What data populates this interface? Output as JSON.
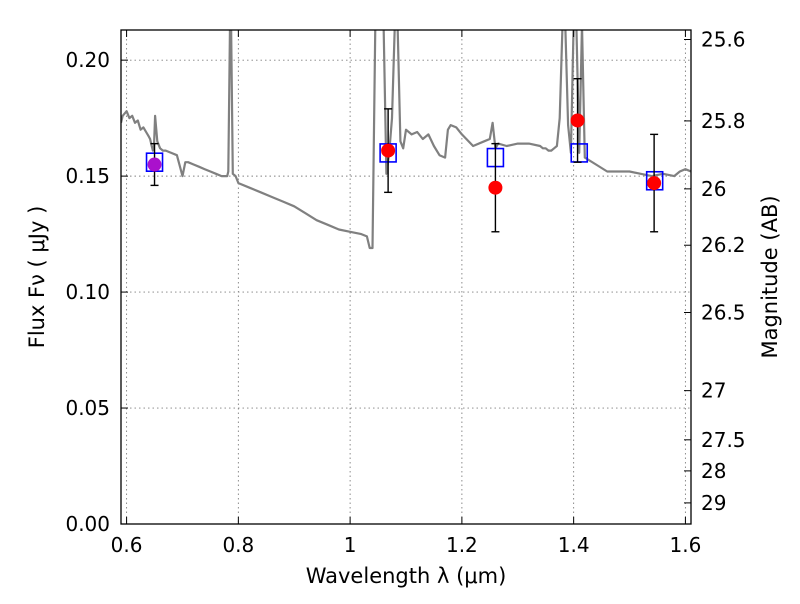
{
  "chart_data": {
    "type": "scatter",
    "xlabel": "Wavelength  λ (μm)",
    "ylabel": "Flux  Fν  ( μJy )",
    "y2label": "Magnitude (AB)",
    "xlim": [
      0.59,
      1.61
    ],
    "ylim": [
      0.0,
      0.213
    ],
    "grid": true,
    "x_ticks": [
      0.6,
      0.8,
      1.0,
      1.2,
      1.4,
      1.6
    ],
    "x_tick_labels": [
      "0.6",
      "0.8",
      "1",
      "1.2",
      "1.4",
      "1.6"
    ],
    "y_ticks": [
      0.0,
      0.05,
      0.1,
      0.15,
      0.2
    ],
    "y_tick_labels": [
      "0.00",
      "0.05",
      "0.10",
      "0.15",
      "0.20"
    ],
    "y2_ticks": [
      {
        "label": "25.6",
        "flux": 0.2089
      },
      {
        "label": "25.8",
        "flux": 0.1738
      },
      {
        "label": "26",
        "flux": 0.1445
      },
      {
        "label": "26.2",
        "flux": 0.1202
      },
      {
        "label": "26.5",
        "flux": 0.0912
      },
      {
        "label": "27",
        "flux": 0.0575
      },
      {
        "label": "27.5",
        "flux": 0.0363
      },
      {
        "label": "28",
        "flux": 0.0229
      },
      {
        "label": "29",
        "flux": 0.0091
      }
    ],
    "colors": {
      "model": "#808080",
      "observed": "#ff0000",
      "observed_blend": "#aa11cc",
      "model_band": "#0000ff",
      "errorbar": "#000000",
      "grid": "#808080"
    },
    "series": [
      {
        "kind": "model_spectrum",
        "x": [
          0.59,
          0.593,
          0.6,
          0.605,
          0.61,
          0.615,
          0.62,
          0.625,
          0.63,
          0.635,
          0.64,
          0.642,
          0.645,
          0.647,
          0.649,
          0.651,
          0.655,
          0.66,
          0.665,
          0.67,
          0.68,
          0.69,
          0.7,
          0.705,
          0.71,
          0.72,
          0.73,
          0.74,
          0.75,
          0.76,
          0.77,
          0.78,
          0.782,
          0.785,
          0.787,
          0.79,
          0.795,
          0.8,
          0.82,
          0.84,
          0.86,
          0.88,
          0.9,
          0.92,
          0.94,
          0.96,
          0.98,
          1.0,
          1.02,
          1.03,
          1.035,
          1.04,
          1.045,
          1.05,
          1.055,
          1.06,
          1.065,
          1.07,
          1.075,
          1.08,
          1.083,
          1.085,
          1.09,
          1.095,
          1.1,
          1.11,
          1.12,
          1.13,
          1.14,
          1.15,
          1.16,
          1.17,
          1.175,
          1.18,
          1.19,
          1.2,
          1.22,
          1.24,
          1.25,
          1.255,
          1.26,
          1.265,
          1.28,
          1.3,
          1.32,
          1.34,
          1.345,
          1.35,
          1.355,
          1.36,
          1.365,
          1.37,
          1.375,
          1.38,
          1.385,
          1.39,
          1.395,
          1.4,
          1.405,
          1.41,
          1.415,
          1.42,
          1.44,
          1.46,
          1.48,
          1.5,
          1.52,
          1.54,
          1.56,
          1.58,
          1.59,
          1.6,
          1.61
        ],
        "y": [
          0.173,
          0.176,
          0.178,
          0.175,
          0.176,
          0.173,
          0.174,
          0.17,
          0.171,
          0.169,
          0.167,
          0.166,
          0.163,
          0.161,
          0.163,
          0.176,
          0.165,
          0.162,
          0.161,
          0.161,
          0.16,
          0.159,
          0.15,
          0.156,
          0.156,
          0.155,
          0.154,
          0.153,
          0.152,
          0.151,
          0.15,
          0.15,
          0.152,
          0.215,
          0.215,
          0.151,
          0.15,
          0.147,
          0.145,
          0.143,
          0.141,
          0.139,
          0.137,
          0.134,
          0.131,
          0.129,
          0.127,
          0.126,
          0.125,
          0.124,
          0.119,
          0.119,
          0.215,
          0.215,
          0.215,
          0.215,
          0.151,
          0.16,
          0.175,
          0.215,
          0.215,
          0.215,
          0.165,
          0.162,
          0.17,
          0.168,
          0.169,
          0.166,
          0.168,
          0.163,
          0.159,
          0.158,
          0.17,
          0.172,
          0.171,
          0.168,
          0.163,
          0.165,
          0.166,
          0.173,
          0.162,
          0.164,
          0.163,
          0.164,
          0.164,
          0.163,
          0.162,
          0.162,
          0.161,
          0.161,
          0.162,
          0.163,
          0.175,
          0.215,
          0.215,
          0.172,
          0.16,
          0.215,
          0.215,
          0.16,
          0.215,
          0.158,
          0.155,
          0.152,
          0.152,
          0.152,
          0.151,
          0.15,
          0.151,
          0.15,
          0.152,
          0.153,
          0.152
        ]
      },
      {
        "kind": "model_band",
        "x": [
          0.65,
          1.068,
          1.26,
          1.41,
          1.545
        ],
        "y": [
          0.156,
          0.16,
          0.158,
          0.16,
          0.148
        ]
      },
      {
        "kind": "observed",
        "x": [
          0.65,
          1.068,
          1.26,
          1.407,
          1.544
        ],
        "y": [
          0.155,
          0.161,
          0.145,
          0.174,
          0.147
        ],
        "yerr": [
          0.009,
          0.018,
          0.019,
          0.018,
          0.021
        ]
      }
    ]
  }
}
